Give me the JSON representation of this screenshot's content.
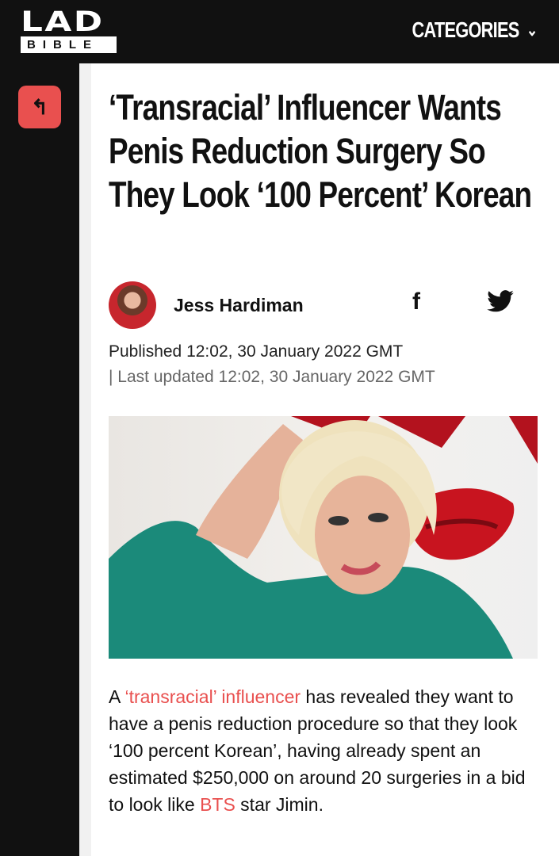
{
  "header": {
    "logo_top": "LAD",
    "logo_bottom": "BIBLE",
    "categories_label": "CATEGORIES"
  },
  "article": {
    "title": "‘Transracial’ Influencer Wants Penis Reduction Surgery So They Look ‘100 Percent’ Korean",
    "author": "Jess Hardiman",
    "published": "Published 12:02, 30 January 2022 GMT",
    "updated": "| Last updated 12:02, 30 January 2022 GMT",
    "body": {
      "p1": "A ",
      "link1": "‘transracial’ influencer",
      "p2": " has revealed they want to have a penis reduction procedure so that they look ‘100 percent Korean’, having already spent an estimated $250,000 on around 20 surgeries in a bid to look like ",
      "link2": "BTS",
      "p3": " star Jimin."
    }
  },
  "colors": {
    "accent": "#e9504f",
    "header": "#111111"
  },
  "icons": {
    "back": "back-arrow-icon",
    "facebook": "facebook-icon",
    "twitter": "twitter-icon",
    "chevron": "chevron-down-icon"
  }
}
